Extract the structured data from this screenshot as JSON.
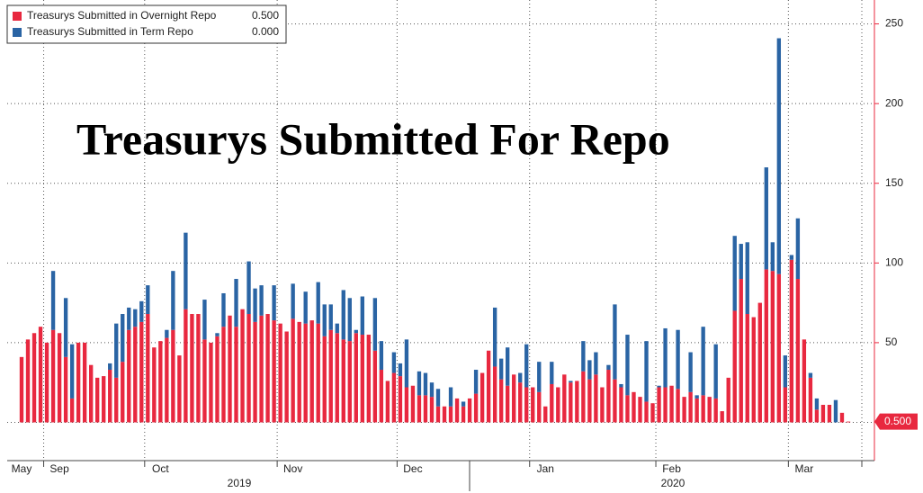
{
  "chart_data": {
    "type": "stacked-bar",
    "title": "Treasurys Submitted For Repo",
    "categories": [
      "May",
      null,
      null,
      null,
      "Sep",
      null,
      null,
      null,
      null,
      null,
      null,
      null,
      null,
      null,
      null,
      null,
      null,
      null,
      null,
      null,
      "Oct",
      null,
      null,
      null,
      null,
      null,
      null,
      null,
      null,
      null,
      null,
      null,
      null,
      null,
      null,
      null,
      null,
      null,
      null,
      null,
      null,
      "Nov",
      null,
      null,
      null,
      null,
      null,
      null,
      null,
      null,
      null,
      null,
      null,
      null,
      null,
      null,
      null,
      null,
      null,
      null,
      "Dec",
      null,
      null,
      null,
      null,
      null,
      null,
      null,
      null,
      null,
      null,
      null,
      null,
      null,
      null,
      null,
      null,
      null,
      null,
      null,
      null,
      "Jan",
      null,
      null,
      null,
      null,
      null,
      null,
      null,
      null,
      null,
      null,
      null,
      null,
      null,
      null,
      null,
      null,
      null,
      null,
      null,
      "Feb",
      null,
      null,
      null,
      null,
      null,
      null,
      null,
      null,
      null,
      null,
      null,
      null,
      null,
      null,
      null,
      null,
      null,
      null,
      null,
      null,
      "Mar",
      null,
      null,
      null,
      null,
      null,
      null,
      null,
      null,
      null
    ],
    "year_labels": [
      "2019",
      "2020"
    ],
    "series": [
      {
        "name": "Treasurys Submitted in Overnight Repo",
        "legend_value": "0.500",
        "color": "#e8283f",
        "values": [
          41,
          52,
          56,
          60,
          50,
          58,
          56,
          41,
          15,
          50,
          50,
          36,
          28,
          29,
          33,
          28,
          38,
          58,
          60,
          63,
          68,
          47,
          51,
          53,
          58,
          42,
          71,
          68,
          68,
          52,
          50,
          54,
          60,
          67,
          60,
          71,
          68,
          63,
          67,
          68,
          64,
          62,
          57,
          65,
          63,
          62,
          64,
          62,
          54,
          58,
          56,
          52,
          51,
          56,
          55,
          55,
          45,
          33,
          26,
          31,
          29,
          22,
          23,
          17,
          17,
          16,
          10,
          10,
          10,
          15,
          10,
          15,
          18,
          31,
          45,
          35,
          27,
          23,
          30,
          25,
          22,
          22,
          19,
          10,
          24,
          22,
          30,
          25,
          26,
          32,
          27,
          30,
          22,
          33,
          27,
          22,
          17,
          19,
          16,
          13,
          12,
          22,
          22,
          23,
          21,
          16,
          19,
          15,
          17,
          16,
          15,
          7,
          28,
          70,
          90,
          68,
          66,
          75,
          96,
          95,
          93,
          22,
          102,
          90,
          52,
          28,
          8,
          11,
          11,
          0,
          6,
          0.5
        ]
      },
      {
        "name": "Treasurys Submitted in Term Repo",
        "legend_value": "0.000",
        "color": "#2a64a4",
        "values": [
          0,
          0,
          0,
          0,
          0,
          37,
          0,
          37,
          34,
          0,
          0,
          0,
          0,
          0,
          4,
          34,
          30,
          14,
          11,
          13,
          18,
          0,
          0,
          5,
          37,
          0,
          48,
          0,
          0,
          25,
          0,
          2,
          21,
          0,
          30,
          0,
          33,
          21,
          19,
          0,
          22,
          0,
          0,
          22,
          0,
          20,
          0,
          26,
          20,
          16,
          6,
          31,
          27,
          2,
          24,
          0,
          33,
          18,
          0,
          13,
          8,
          30,
          0,
          15,
          14,
          9,
          11,
          0,
          12,
          0,
          3,
          0,
          15,
          0,
          0,
          37,
          13,
          24,
          0,
          6,
          27,
          0,
          19,
          0,
          14,
          0,
          0,
          1,
          0,
          19,
          12,
          14,
          0,
          3,
          47,
          2,
          38,
          0,
          0,
          38,
          0,
          1,
          37,
          0,
          37,
          0,
          25,
          2,
          43,
          0,
          34,
          0,
          0,
          47,
          22,
          45,
          0,
          0,
          64,
          18,
          148,
          20,
          3,
          38,
          0,
          3,
          7,
          0,
          0,
          14,
          0,
          0
        ]
      }
    ],
    "ylim": [
      -24,
      265
    ],
    "yticks": [
      0,
      50,
      100,
      150,
      200,
      250
    ],
    "grid": true,
    "legend": "upper left"
  }
}
